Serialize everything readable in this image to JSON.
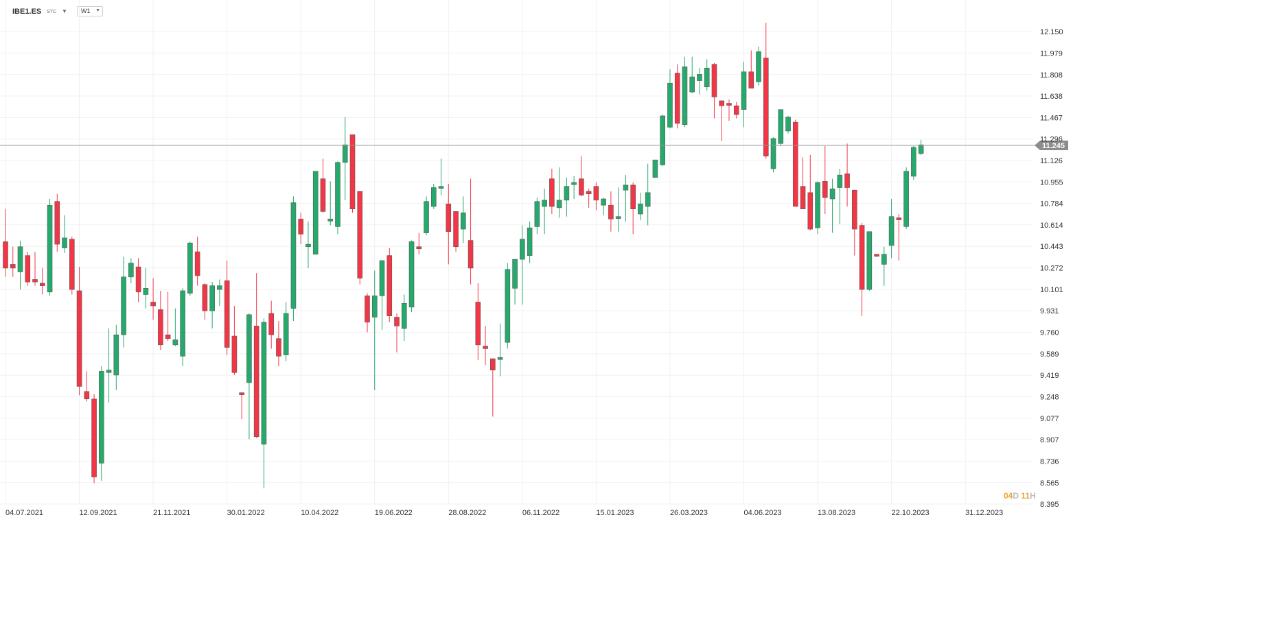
{
  "header": {
    "symbol": "IBE1.ES",
    "symbol_suffix": "STC",
    "timeframe": "W1",
    "symbol_caret_icon": "caret-down",
    "timeframe_caret_icon": "caret-down"
  },
  "countdown": {
    "days": "04",
    "days_unit": "D",
    "hours": "11",
    "hours_unit": "H"
  },
  "colors": {
    "up": "#26a96c",
    "down": "#f23645",
    "grid": "#f0f0f0",
    "current_line": "#9a9a9a",
    "current_label_bg": "#8c8c8c",
    "axis_text": "#333333"
  },
  "chart_data": {
    "type": "candlestick",
    "title": "",
    "timeframe": "weekly",
    "y_ticks": [
      "12.150",
      "11.979",
      "11.808",
      "11.638",
      "11.467",
      "11.296",
      "11.126",
      "10.955",
      "10.784",
      "10.614",
      "10.443",
      "10.272",
      "10.101",
      "9.931",
      "9.760",
      "9.589",
      "9.419",
      "9.248",
      "9.077",
      "8.907",
      "8.736",
      "8.565",
      "8.395"
    ],
    "x_ticks": [
      "04.07.2021",
      "12.09.2021",
      "21.11.2021",
      "30.01.2022",
      "10.04.2022",
      "19.06.2022",
      "28.08.2022",
      "06.11.2022",
      "15.01.2023",
      "26.03.2023",
      "04.06.2023",
      "13.08.2023",
      "22.10.2023",
      "31.12.2023"
    ],
    "ylim": [
      8.395,
      12.15
    ],
    "grid": true,
    "current_price": "11.245",
    "candles": [
      {
        "o": 10.48,
        "h": 10.74,
        "l": 10.2,
        "c": 10.27
      },
      {
        "o": 10.3,
        "h": 10.44,
        "l": 10.2,
        "c": 10.27
      },
      {
        "o": 10.24,
        "h": 10.49,
        "l": 10.1,
        "c": 10.44
      },
      {
        "o": 10.37,
        "h": 10.4,
        "l": 10.13,
        "c": 10.16
      },
      {
        "o": 10.18,
        "h": 10.4,
        "l": 10.13,
        "c": 10.16
      },
      {
        "o": 10.15,
        "h": 10.27,
        "l": 10.06,
        "c": 10.13
      },
      {
        "o": 10.08,
        "h": 10.82,
        "l": 10.05,
        "c": 10.77
      },
      {
        "o": 10.8,
        "h": 10.86,
        "l": 10.4,
        "c": 10.46
      },
      {
        "o": 10.43,
        "h": 10.69,
        "l": 10.39,
        "c": 10.51
      },
      {
        "o": 10.5,
        "h": 10.52,
        "l": 10.06,
        "c": 10.1
      },
      {
        "o": 10.09,
        "h": 10.28,
        "l": 9.26,
        "c": 9.33
      },
      {
        "o": 9.29,
        "h": 9.45,
        "l": 9.21,
        "c": 9.23
      },
      {
        "o": 9.23,
        "h": 9.27,
        "l": 8.56,
        "c": 8.61
      },
      {
        "o": 8.72,
        "h": 9.49,
        "l": 8.58,
        "c": 9.45
      },
      {
        "o": 9.44,
        "h": 9.79,
        "l": 9.2,
        "c": 9.46
      },
      {
        "o": 9.42,
        "h": 9.82,
        "l": 9.3,
        "c": 9.74
      },
      {
        "o": 9.74,
        "h": 10.36,
        "l": 9.64,
        "c": 10.2
      },
      {
        "o": 10.2,
        "h": 10.35,
        "l": 10.15,
        "c": 10.31
      },
      {
        "o": 10.28,
        "h": 10.35,
        "l": 10.0,
        "c": 10.08
      },
      {
        "o": 10.06,
        "h": 10.27,
        "l": 9.95,
        "c": 10.11
      },
      {
        "o": 10.0,
        "h": 10.19,
        "l": 9.86,
        "c": 9.97
      },
      {
        "o": 9.94,
        "h": 10.09,
        "l": 9.62,
        "c": 9.66
      },
      {
        "o": 9.74,
        "h": 10.08,
        "l": 9.69,
        "c": 9.71
      },
      {
        "o": 9.66,
        "h": 9.95,
        "l": 9.65,
        "c": 9.7
      },
      {
        "o": 9.57,
        "h": 10.11,
        "l": 9.49,
        "c": 10.09
      },
      {
        "o": 10.07,
        "h": 10.48,
        "l": 10.05,
        "c": 10.47
      },
      {
        "o": 10.4,
        "h": 10.52,
        "l": 10.13,
        "c": 10.21
      },
      {
        "o": 10.14,
        "h": 10.15,
        "l": 9.86,
        "c": 9.93
      },
      {
        "o": 9.93,
        "h": 10.16,
        "l": 9.79,
        "c": 10.13
      },
      {
        "o": 10.1,
        "h": 10.18,
        "l": 9.97,
        "c": 10.13
      },
      {
        "o": 10.17,
        "h": 10.33,
        "l": 9.58,
        "c": 9.64
      },
      {
        "o": 9.73,
        "h": 9.97,
        "l": 9.42,
        "c": 9.44
      },
      {
        "o": 9.28,
        "h": 9.28,
        "l": 9.07,
        "c": 9.27
      },
      {
        "o": 9.36,
        "h": 9.91,
        "l": 8.91,
        "c": 9.9
      },
      {
        "o": 9.81,
        "h": 10.23,
        "l": 8.92,
        "c": 8.93
      },
      {
        "o": 8.87,
        "h": 9.87,
        "l": 8.52,
        "c": 9.84
      },
      {
        "o": 9.91,
        "h": 10.01,
        "l": 9.63,
        "c": 9.74
      },
      {
        "o": 9.71,
        "h": 9.85,
        "l": 9.49,
        "c": 9.57
      },
      {
        "o": 9.58,
        "h": 10.0,
        "l": 9.53,
        "c": 9.91
      },
      {
        "o": 9.95,
        "h": 10.84,
        "l": 9.85,
        "c": 10.79
      },
      {
        "o": 10.66,
        "h": 10.71,
        "l": 10.46,
        "c": 10.54
      },
      {
        "o": 10.44,
        "h": 10.64,
        "l": 10.27,
        "c": 10.46
      },
      {
        "o": 10.38,
        "h": 11.04,
        "l": 10.38,
        "c": 11.04
      },
      {
        "o": 10.98,
        "h": 11.14,
        "l": 10.71,
        "c": 10.72
      },
      {
        "o": 10.65,
        "h": 10.96,
        "l": 10.61,
        "c": 10.66
      },
      {
        "o": 10.6,
        "h": 11.12,
        "l": 10.54,
        "c": 11.11
      },
      {
        "o": 11.11,
        "h": 11.47,
        "l": 10.81,
        "c": 11.25
      },
      {
        "o": 11.33,
        "h": 11.33,
        "l": 10.71,
        "c": 10.74
      },
      {
        "o": 10.88,
        "h": 10.88,
        "l": 10.14,
        "c": 10.19
      },
      {
        "o": 10.05,
        "h": 10.07,
        "l": 9.76,
        "c": 9.84
      },
      {
        "o": 9.88,
        "h": 10.25,
        "l": 9.3,
        "c": 10.05
      },
      {
        "o": 10.05,
        "h": 10.33,
        "l": 9.78,
        "c": 10.33
      },
      {
        "o": 10.37,
        "h": 10.43,
        "l": 9.84,
        "c": 9.89
      },
      {
        "o": 9.88,
        "h": 9.91,
        "l": 9.6,
        "c": 9.81
      },
      {
        "o": 9.79,
        "h": 10.06,
        "l": 9.69,
        "c": 9.99
      },
      {
        "o": 9.96,
        "h": 10.49,
        "l": 9.92,
        "c": 10.48
      },
      {
        "o": 10.44,
        "h": 10.55,
        "l": 10.38,
        "c": 10.43
      },
      {
        "o": 10.55,
        "h": 10.84,
        "l": 10.53,
        "c": 10.8
      },
      {
        "o": 10.76,
        "h": 10.94,
        "l": 10.74,
        "c": 10.91
      },
      {
        "o": 10.91,
        "h": 11.14,
        "l": 10.85,
        "c": 10.92
      },
      {
        "o": 10.78,
        "h": 10.94,
        "l": 10.3,
        "c": 10.56
      },
      {
        "o": 10.72,
        "h": 10.72,
        "l": 10.4,
        "c": 10.44
      },
      {
        "o": 10.58,
        "h": 10.84,
        "l": 10.47,
        "c": 10.71
      },
      {
        "o": 10.49,
        "h": 10.98,
        "l": 10.14,
        "c": 10.27
      },
      {
        "o": 10.0,
        "h": 10.15,
        "l": 9.54,
        "c": 9.66
      },
      {
        "o": 9.65,
        "h": 9.81,
        "l": 9.5,
        "c": 9.63
      },
      {
        "o": 9.55,
        "h": 9.53,
        "l": 9.09,
        "c": 9.46
      },
      {
        "o": 9.55,
        "h": 9.83,
        "l": 9.41,
        "c": 9.56
      },
      {
        "o": 9.68,
        "h": 10.31,
        "l": 9.63,
        "c": 10.26
      },
      {
        "o": 10.11,
        "h": 10.34,
        "l": 9.98,
        "c": 10.34
      },
      {
        "o": 10.34,
        "h": 10.61,
        "l": 9.98,
        "c": 10.5
      },
      {
        "o": 10.37,
        "h": 10.64,
        "l": 10.31,
        "c": 10.59
      },
      {
        "o": 10.6,
        "h": 10.83,
        "l": 10.54,
        "c": 10.8
      },
      {
        "o": 10.76,
        "h": 10.9,
        "l": 10.54,
        "c": 10.81
      },
      {
        "o": 10.98,
        "h": 11.06,
        "l": 10.7,
        "c": 10.76
      },
      {
        "o": 10.75,
        "h": 11.07,
        "l": 10.67,
        "c": 10.81
      },
      {
        "o": 10.81,
        "h": 10.99,
        "l": 10.68,
        "c": 10.92
      },
      {
        "o": 10.95,
        "h": 11.0,
        "l": 10.82,
        "c": 10.95
      },
      {
        "o": 10.98,
        "h": 11.16,
        "l": 10.84,
        "c": 10.85
      },
      {
        "o": 10.88,
        "h": 10.9,
        "l": 10.75,
        "c": 10.86
      },
      {
        "o": 10.92,
        "h": 10.95,
        "l": 10.73,
        "c": 10.81
      },
      {
        "o": 10.77,
        "h": 10.83,
        "l": 10.69,
        "c": 10.82
      },
      {
        "o": 10.77,
        "h": 10.88,
        "l": 10.56,
        "c": 10.66
      },
      {
        "o": 10.67,
        "h": 10.91,
        "l": 10.56,
        "c": 10.68
      },
      {
        "o": 10.89,
        "h": 11.01,
        "l": 10.64,
        "c": 10.93
      },
      {
        "o": 10.93,
        "h": 10.95,
        "l": 10.54,
        "c": 10.74
      },
      {
        "o": 10.7,
        "h": 10.87,
        "l": 10.65,
        "c": 10.78
      },
      {
        "o": 10.76,
        "h": 11.1,
        "l": 10.61,
        "c": 10.87
      },
      {
        "o": 10.99,
        "h": 11.13,
        "l": 10.99,
        "c": 11.13
      },
      {
        "o": 11.09,
        "h": 11.49,
        "l": 11.08,
        "c": 11.48
      },
      {
        "o": 11.39,
        "h": 11.85,
        "l": 11.38,
        "c": 11.74
      },
      {
        "o": 11.82,
        "h": 11.89,
        "l": 11.38,
        "c": 11.42
      },
      {
        "o": 11.41,
        "h": 11.95,
        "l": 11.39,
        "c": 11.87
      },
      {
        "o": 11.67,
        "h": 11.95,
        "l": 11.66,
        "c": 11.79
      },
      {
        "o": 11.76,
        "h": 11.86,
        "l": 11.65,
        "c": 11.81
      },
      {
        "o": 11.71,
        "h": 11.93,
        "l": 11.68,
        "c": 11.86
      },
      {
        "o": 11.89,
        "h": 11.9,
        "l": 11.46,
        "c": 11.63
      },
      {
        "o": 11.6,
        "h": 11.6,
        "l": 11.28,
        "c": 11.56
      },
      {
        "o": 11.58,
        "h": 11.61,
        "l": 11.44,
        "c": 11.57
      },
      {
        "o": 11.56,
        "h": 11.59,
        "l": 11.46,
        "c": 11.49
      },
      {
        "o": 11.53,
        "h": 11.91,
        "l": 11.39,
        "c": 11.83
      },
      {
        "o": 11.83,
        "h": 12.0,
        "l": 11.7,
        "c": 11.7
      },
      {
        "o": 11.75,
        "h": 12.03,
        "l": 11.72,
        "c": 11.99
      },
      {
        "o": 11.94,
        "h": 12.22,
        "l": 11.14,
        "c": 11.16
      },
      {
        "o": 11.06,
        "h": 11.31,
        "l": 11.03,
        "c": 11.3
      },
      {
        "o": 11.26,
        "h": 11.53,
        "l": 11.24,
        "c": 11.53
      },
      {
        "o": 11.36,
        "h": 11.48,
        "l": 11.34,
        "c": 11.47
      },
      {
        "o": 11.43,
        "h": 11.45,
        "l": 10.76,
        "c": 10.76
      },
      {
        "o": 10.92,
        "h": 11.15,
        "l": 10.75,
        "c": 10.74
      },
      {
        "o": 10.87,
        "h": 11.17,
        "l": 10.57,
        "c": 10.58
      },
      {
        "o": 10.59,
        "h": 10.96,
        "l": 10.54,
        "c": 10.95
      },
      {
        "o": 10.96,
        "h": 11.24,
        "l": 10.7,
        "c": 10.83
      },
      {
        "o": 10.82,
        "h": 10.98,
        "l": 10.55,
        "c": 10.9
      },
      {
        "o": 10.91,
        "h": 11.06,
        "l": 10.62,
        "c": 11.01
      },
      {
        "o": 11.02,
        "h": 11.26,
        "l": 10.76,
        "c": 10.91
      },
      {
        "o": 10.89,
        "h": 10.89,
        "l": 10.37,
        "c": 10.58
      },
      {
        "o": 10.61,
        "h": 10.63,
        "l": 9.89,
        "c": 10.1
      },
      {
        "o": 10.1,
        "h": 10.56,
        "l": 10.09,
        "c": 10.56
      },
      {
        "o": 10.38,
        "h": 10.38,
        "l": 10.36,
        "c": 10.37
      },
      {
        "o": 10.3,
        "h": 10.44,
        "l": 10.13,
        "c": 10.38
      },
      {
        "o": 10.45,
        "h": 10.82,
        "l": 10.35,
        "c": 10.68
      },
      {
        "o": 10.67,
        "h": 10.7,
        "l": 10.33,
        "c": 10.66
      },
      {
        "o": 10.6,
        "h": 11.07,
        "l": 10.58,
        "c": 11.04
      },
      {
        "o": 11.0,
        "h": 11.24,
        "l": 10.97,
        "c": 11.23
      },
      {
        "o": 11.18,
        "h": 11.29,
        "l": 11.17,
        "c": 11.25
      }
    ]
  }
}
